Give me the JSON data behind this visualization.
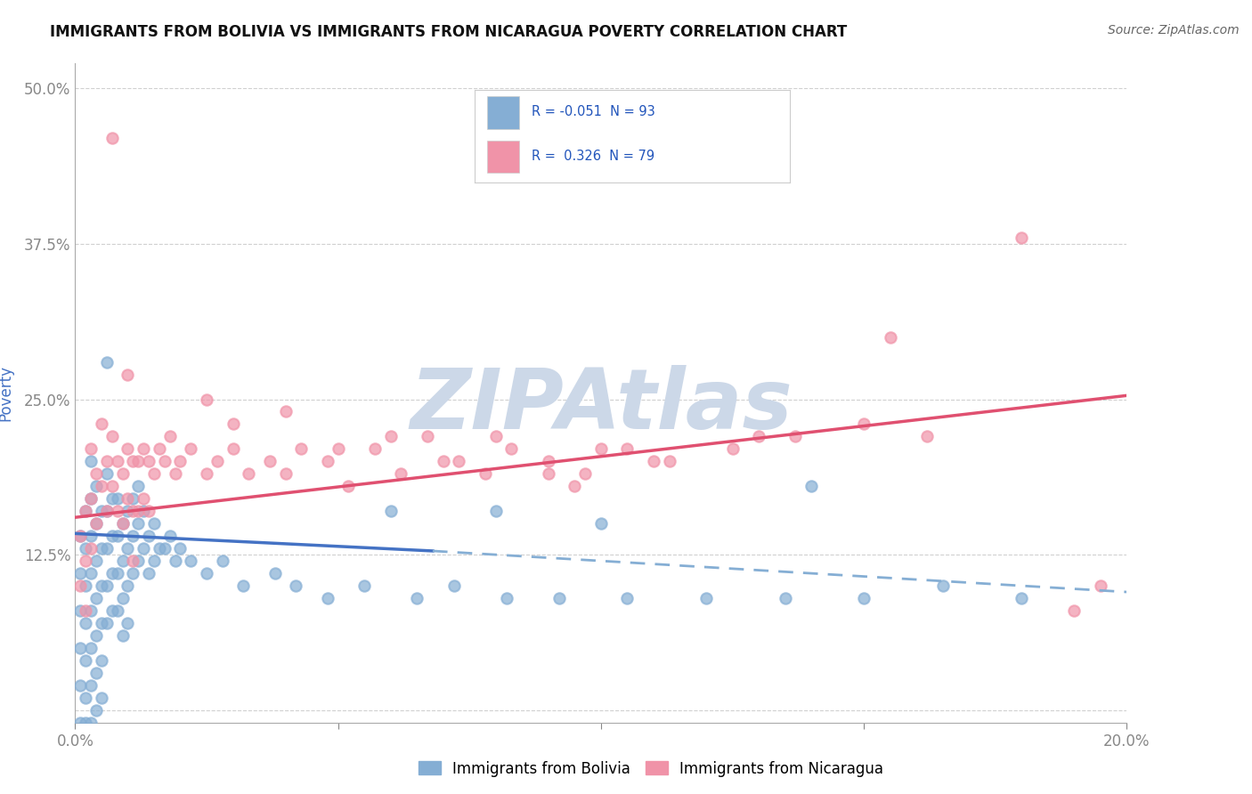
{
  "title": "IMMIGRANTS FROM BOLIVIA VS IMMIGRANTS FROM NICARAGUA POVERTY CORRELATION CHART",
  "source": "Source: ZipAtlas.com",
  "ylabel": "Poverty",
  "xlim": [
    0.0,
    0.2
  ],
  "ylim": [
    -0.01,
    0.52
  ],
  "xticks": [
    0.0,
    0.05,
    0.1,
    0.15,
    0.2
  ],
  "yticks": [
    0.0,
    0.125,
    0.25,
    0.375,
    0.5
  ],
  "xticklabels": [
    "0.0%",
    "",
    "",
    "",
    "20.0%"
  ],
  "yticklabels": [
    "",
    "12.5%",
    "25.0%",
    "37.5%",
    "50.0%"
  ],
  "bolivia_color": "#85aed4",
  "nicaragua_color": "#f093a8",
  "watermark_text": "ZIPAtlas",
  "legend_label_bolivia": "Immigrants from Bolivia",
  "legend_label_nicaragua": "Immigrants from Nicaragua",
  "bolivia_scatter": [
    [
      0.001,
      0.14
    ],
    [
      0.001,
      0.11
    ],
    [
      0.001,
      0.08
    ],
    [
      0.001,
      0.05
    ],
    [
      0.001,
      0.02
    ],
    [
      0.001,
      -0.01
    ],
    [
      0.002,
      0.16
    ],
    [
      0.002,
      0.13
    ],
    [
      0.002,
      0.1
    ],
    [
      0.002,
      0.07
    ],
    [
      0.002,
      0.04
    ],
    [
      0.002,
      0.01
    ],
    [
      0.002,
      -0.01
    ],
    [
      0.003,
      0.2
    ],
    [
      0.003,
      0.17
    ],
    [
      0.003,
      0.14
    ],
    [
      0.003,
      0.11
    ],
    [
      0.003,
      0.08
    ],
    [
      0.003,
      0.05
    ],
    [
      0.003,
      0.02
    ],
    [
      0.003,
      -0.01
    ],
    [
      0.004,
      0.18
    ],
    [
      0.004,
      0.15
    ],
    [
      0.004,
      0.12
    ],
    [
      0.004,
      0.09
    ],
    [
      0.004,
      0.06
    ],
    [
      0.004,
      0.03
    ],
    [
      0.004,
      0.0
    ],
    [
      0.005,
      0.16
    ],
    [
      0.005,
      0.13
    ],
    [
      0.005,
      0.1
    ],
    [
      0.005,
      0.07
    ],
    [
      0.005,
      0.04
    ],
    [
      0.005,
      0.01
    ],
    [
      0.006,
      0.28
    ],
    [
      0.006,
      0.19
    ],
    [
      0.006,
      0.16
    ],
    [
      0.006,
      0.13
    ],
    [
      0.006,
      0.1
    ],
    [
      0.006,
      0.07
    ],
    [
      0.007,
      0.17
    ],
    [
      0.007,
      0.14
    ],
    [
      0.007,
      0.11
    ],
    [
      0.007,
      0.08
    ],
    [
      0.008,
      0.17
    ],
    [
      0.008,
      0.14
    ],
    [
      0.008,
      0.11
    ],
    [
      0.008,
      0.08
    ],
    [
      0.009,
      0.15
    ],
    [
      0.009,
      0.12
    ],
    [
      0.009,
      0.09
    ],
    [
      0.009,
      0.06
    ],
    [
      0.01,
      0.16
    ],
    [
      0.01,
      0.13
    ],
    [
      0.01,
      0.1
    ],
    [
      0.01,
      0.07
    ],
    [
      0.011,
      0.17
    ],
    [
      0.011,
      0.14
    ],
    [
      0.011,
      0.11
    ],
    [
      0.012,
      0.18
    ],
    [
      0.012,
      0.15
    ],
    [
      0.012,
      0.12
    ],
    [
      0.013,
      0.16
    ],
    [
      0.013,
      0.13
    ],
    [
      0.014,
      0.14
    ],
    [
      0.014,
      0.11
    ],
    [
      0.015,
      0.15
    ],
    [
      0.015,
      0.12
    ],
    [
      0.016,
      0.13
    ],
    [
      0.017,
      0.13
    ],
    [
      0.018,
      0.14
    ],
    [
      0.019,
      0.12
    ],
    [
      0.02,
      0.13
    ],
    [
      0.022,
      0.12
    ],
    [
      0.025,
      0.11
    ],
    [
      0.028,
      0.12
    ],
    [
      0.032,
      0.1
    ],
    [
      0.038,
      0.11
    ],
    [
      0.042,
      0.1
    ],
    [
      0.048,
      0.09
    ],
    [
      0.055,
      0.1
    ],
    [
      0.065,
      0.09
    ],
    [
      0.072,
      0.1
    ],
    [
      0.082,
      0.09
    ],
    [
      0.092,
      0.09
    ],
    [
      0.105,
      0.09
    ],
    [
      0.12,
      0.09
    ],
    [
      0.135,
      0.09
    ],
    [
      0.15,
      0.09
    ],
    [
      0.165,
      0.1
    ],
    [
      0.18,
      0.09
    ],
    [
      0.06,
      0.16
    ],
    [
      0.08,
      0.16
    ],
    [
      0.1,
      0.15
    ],
    [
      0.14,
      0.18
    ]
  ],
  "nicaragua_scatter": [
    [
      0.001,
      0.14
    ],
    [
      0.001,
      0.1
    ],
    [
      0.002,
      0.16
    ],
    [
      0.002,
      0.12
    ],
    [
      0.002,
      0.08
    ],
    [
      0.003,
      0.21
    ],
    [
      0.003,
      0.17
    ],
    [
      0.003,
      0.13
    ],
    [
      0.004,
      0.19
    ],
    [
      0.004,
      0.15
    ],
    [
      0.005,
      0.23
    ],
    [
      0.005,
      0.18
    ],
    [
      0.006,
      0.2
    ],
    [
      0.006,
      0.16
    ],
    [
      0.007,
      0.22
    ],
    [
      0.007,
      0.18
    ],
    [
      0.008,
      0.2
    ],
    [
      0.008,
      0.16
    ],
    [
      0.009,
      0.19
    ],
    [
      0.009,
      0.15
    ],
    [
      0.01,
      0.21
    ],
    [
      0.01,
      0.17
    ],
    [
      0.011,
      0.2
    ],
    [
      0.011,
      0.16
    ],
    [
      0.012,
      0.2
    ],
    [
      0.012,
      0.16
    ],
    [
      0.013,
      0.21
    ],
    [
      0.013,
      0.17
    ],
    [
      0.014,
      0.2
    ],
    [
      0.014,
      0.16
    ],
    [
      0.015,
      0.19
    ],
    [
      0.016,
      0.21
    ],
    [
      0.017,
      0.2
    ],
    [
      0.018,
      0.22
    ],
    [
      0.019,
      0.19
    ],
    [
      0.02,
      0.2
    ],
    [
      0.022,
      0.21
    ],
    [
      0.025,
      0.19
    ],
    [
      0.027,
      0.2
    ],
    [
      0.03,
      0.21
    ],
    [
      0.033,
      0.19
    ],
    [
      0.037,
      0.2
    ],
    [
      0.04,
      0.19
    ],
    [
      0.043,
      0.21
    ],
    [
      0.048,
      0.2
    ],
    [
      0.052,
      0.18
    ],
    [
      0.057,
      0.21
    ],
    [
      0.062,
      0.19
    ],
    [
      0.067,
      0.22
    ],
    [
      0.073,
      0.2
    ],
    [
      0.078,
      0.19
    ],
    [
      0.083,
      0.21
    ],
    [
      0.09,
      0.2
    ],
    [
      0.097,
      0.19
    ],
    [
      0.105,
      0.21
    ],
    [
      0.113,
      0.2
    ],
    [
      0.125,
      0.21
    ],
    [
      0.137,
      0.22
    ],
    [
      0.15,
      0.23
    ],
    [
      0.162,
      0.22
    ],
    [
      0.007,
      0.46
    ],
    [
      0.01,
      0.27
    ],
    [
      0.025,
      0.25
    ],
    [
      0.03,
      0.23
    ],
    [
      0.04,
      0.24
    ],
    [
      0.05,
      0.21
    ],
    [
      0.06,
      0.22
    ],
    [
      0.07,
      0.2
    ],
    [
      0.08,
      0.22
    ],
    [
      0.09,
      0.19
    ],
    [
      0.1,
      0.21
    ],
    [
      0.11,
      0.2
    ],
    [
      0.18,
      0.38
    ],
    [
      0.155,
      0.3
    ],
    [
      0.13,
      0.22
    ],
    [
      0.095,
      0.18
    ],
    [
      0.19,
      0.08
    ],
    [
      0.195,
      0.1
    ],
    [
      0.011,
      0.12
    ]
  ],
  "bolivia_line_solid": {
    "x0": 0.0,
    "y0": 0.142,
    "x1": 0.068,
    "y1": 0.128
  },
  "bolivia_line_dash": {
    "x0": 0.068,
    "y0": 0.128,
    "x1": 0.2,
    "y1": 0.095
  },
  "nicaragua_line": {
    "x0": 0.0,
    "y0": 0.155,
    "x1": 0.2,
    "y1": 0.253
  },
  "background_color": "#ffffff",
  "grid_color": "#d0d0d0",
  "tick_color": "#4472c4",
  "title_fontsize": 12,
  "source_text": "Source: ZipAtlas.com",
  "watermark_color": "#ccd8e8",
  "bolivia_line_color": "#4472c4",
  "nicaragua_line_color": "#e05070"
}
